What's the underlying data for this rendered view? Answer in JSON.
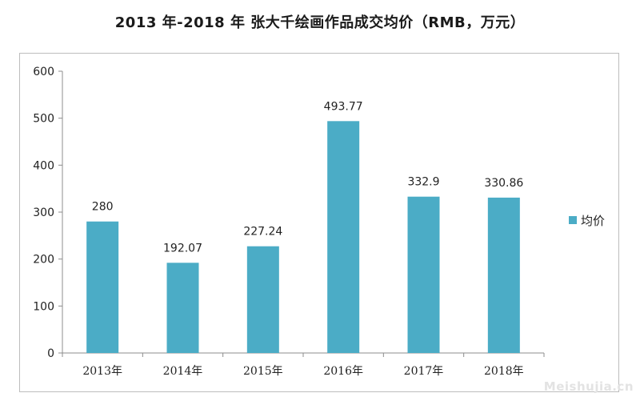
{
  "chart_data": {
    "type": "bar",
    "title": "2013 年-2018 年  张大千绘画作品成交均价（RMB，万元）",
    "categories": [
      "2013年",
      "2014年",
      "2015年",
      "2016年",
      "2017年",
      "2018年"
    ],
    "series": [
      {
        "name": "均价",
        "values": [
          280,
          192.07,
          227.24,
          493.77,
          332.9,
          330.86
        ]
      }
    ],
    "data_labels": [
      "280",
      "192.07",
      "227.24",
      "493.77",
      "332.9",
      "330.86"
    ],
    "ylim": [
      0,
      600
    ],
    "yticks": [
      0,
      100,
      200,
      300,
      400,
      500,
      600
    ],
    "xlabel": "",
    "ylabel": "",
    "grid": false,
    "legend_position": "right",
    "bar_color": "#4bacc6"
  },
  "watermark": "Meishujia.cn"
}
